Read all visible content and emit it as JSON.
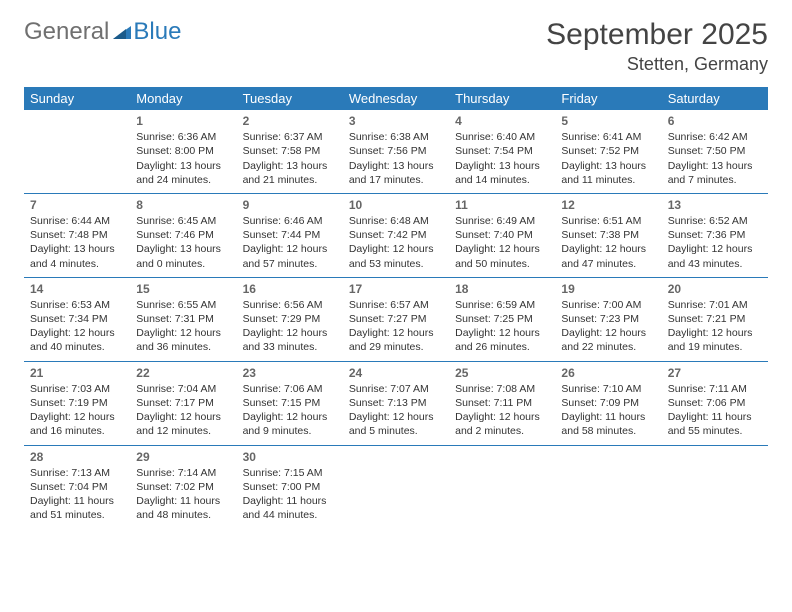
{
  "logo": {
    "general": "General",
    "blue": "Blue"
  },
  "title": "September 2025",
  "location": "Stetten, Germany",
  "header_color": "#2a7ab9",
  "border_color": "#2a7ab9",
  "days_of_week": [
    "Sunday",
    "Monday",
    "Tuesday",
    "Wednesday",
    "Thursday",
    "Friday",
    "Saturday"
  ],
  "weeks": [
    [
      null,
      {
        "n": "1",
        "sr": "Sunrise: 6:36 AM",
        "ss": "Sunset: 8:00 PM",
        "d1": "Daylight: 13 hours",
        "d2": "and 24 minutes."
      },
      {
        "n": "2",
        "sr": "Sunrise: 6:37 AM",
        "ss": "Sunset: 7:58 PM",
        "d1": "Daylight: 13 hours",
        "d2": "and 21 minutes."
      },
      {
        "n": "3",
        "sr": "Sunrise: 6:38 AM",
        "ss": "Sunset: 7:56 PM",
        "d1": "Daylight: 13 hours",
        "d2": "and 17 minutes."
      },
      {
        "n": "4",
        "sr": "Sunrise: 6:40 AM",
        "ss": "Sunset: 7:54 PM",
        "d1": "Daylight: 13 hours",
        "d2": "and 14 minutes."
      },
      {
        "n": "5",
        "sr": "Sunrise: 6:41 AM",
        "ss": "Sunset: 7:52 PM",
        "d1": "Daylight: 13 hours",
        "d2": "and 11 minutes."
      },
      {
        "n": "6",
        "sr": "Sunrise: 6:42 AM",
        "ss": "Sunset: 7:50 PM",
        "d1": "Daylight: 13 hours",
        "d2": "and 7 minutes."
      }
    ],
    [
      {
        "n": "7",
        "sr": "Sunrise: 6:44 AM",
        "ss": "Sunset: 7:48 PM",
        "d1": "Daylight: 13 hours",
        "d2": "and 4 minutes."
      },
      {
        "n": "8",
        "sr": "Sunrise: 6:45 AM",
        "ss": "Sunset: 7:46 PM",
        "d1": "Daylight: 13 hours",
        "d2": "and 0 minutes."
      },
      {
        "n": "9",
        "sr": "Sunrise: 6:46 AM",
        "ss": "Sunset: 7:44 PM",
        "d1": "Daylight: 12 hours",
        "d2": "and 57 minutes."
      },
      {
        "n": "10",
        "sr": "Sunrise: 6:48 AM",
        "ss": "Sunset: 7:42 PM",
        "d1": "Daylight: 12 hours",
        "d2": "and 53 minutes."
      },
      {
        "n": "11",
        "sr": "Sunrise: 6:49 AM",
        "ss": "Sunset: 7:40 PM",
        "d1": "Daylight: 12 hours",
        "d2": "and 50 minutes."
      },
      {
        "n": "12",
        "sr": "Sunrise: 6:51 AM",
        "ss": "Sunset: 7:38 PM",
        "d1": "Daylight: 12 hours",
        "d2": "and 47 minutes."
      },
      {
        "n": "13",
        "sr": "Sunrise: 6:52 AM",
        "ss": "Sunset: 7:36 PM",
        "d1": "Daylight: 12 hours",
        "d2": "and 43 minutes."
      }
    ],
    [
      {
        "n": "14",
        "sr": "Sunrise: 6:53 AM",
        "ss": "Sunset: 7:34 PM",
        "d1": "Daylight: 12 hours",
        "d2": "and 40 minutes."
      },
      {
        "n": "15",
        "sr": "Sunrise: 6:55 AM",
        "ss": "Sunset: 7:31 PM",
        "d1": "Daylight: 12 hours",
        "d2": "and 36 minutes."
      },
      {
        "n": "16",
        "sr": "Sunrise: 6:56 AM",
        "ss": "Sunset: 7:29 PM",
        "d1": "Daylight: 12 hours",
        "d2": "and 33 minutes."
      },
      {
        "n": "17",
        "sr": "Sunrise: 6:57 AM",
        "ss": "Sunset: 7:27 PM",
        "d1": "Daylight: 12 hours",
        "d2": "and 29 minutes."
      },
      {
        "n": "18",
        "sr": "Sunrise: 6:59 AM",
        "ss": "Sunset: 7:25 PM",
        "d1": "Daylight: 12 hours",
        "d2": "and 26 minutes."
      },
      {
        "n": "19",
        "sr": "Sunrise: 7:00 AM",
        "ss": "Sunset: 7:23 PM",
        "d1": "Daylight: 12 hours",
        "d2": "and 22 minutes."
      },
      {
        "n": "20",
        "sr": "Sunrise: 7:01 AM",
        "ss": "Sunset: 7:21 PM",
        "d1": "Daylight: 12 hours",
        "d2": "and 19 minutes."
      }
    ],
    [
      {
        "n": "21",
        "sr": "Sunrise: 7:03 AM",
        "ss": "Sunset: 7:19 PM",
        "d1": "Daylight: 12 hours",
        "d2": "and 16 minutes."
      },
      {
        "n": "22",
        "sr": "Sunrise: 7:04 AM",
        "ss": "Sunset: 7:17 PM",
        "d1": "Daylight: 12 hours",
        "d2": "and 12 minutes."
      },
      {
        "n": "23",
        "sr": "Sunrise: 7:06 AM",
        "ss": "Sunset: 7:15 PM",
        "d1": "Daylight: 12 hours",
        "d2": "and 9 minutes."
      },
      {
        "n": "24",
        "sr": "Sunrise: 7:07 AM",
        "ss": "Sunset: 7:13 PM",
        "d1": "Daylight: 12 hours",
        "d2": "and 5 minutes."
      },
      {
        "n": "25",
        "sr": "Sunrise: 7:08 AM",
        "ss": "Sunset: 7:11 PM",
        "d1": "Daylight: 12 hours",
        "d2": "and 2 minutes."
      },
      {
        "n": "26",
        "sr": "Sunrise: 7:10 AM",
        "ss": "Sunset: 7:09 PM",
        "d1": "Daylight: 11 hours",
        "d2": "and 58 minutes."
      },
      {
        "n": "27",
        "sr": "Sunrise: 7:11 AM",
        "ss": "Sunset: 7:06 PM",
        "d1": "Daylight: 11 hours",
        "d2": "and 55 minutes."
      }
    ],
    [
      {
        "n": "28",
        "sr": "Sunrise: 7:13 AM",
        "ss": "Sunset: 7:04 PM",
        "d1": "Daylight: 11 hours",
        "d2": "and 51 minutes."
      },
      {
        "n": "29",
        "sr": "Sunrise: 7:14 AM",
        "ss": "Sunset: 7:02 PM",
        "d1": "Daylight: 11 hours",
        "d2": "and 48 minutes."
      },
      {
        "n": "30",
        "sr": "Sunrise: 7:15 AM",
        "ss": "Sunset: 7:00 PM",
        "d1": "Daylight: 11 hours",
        "d2": "and 44 minutes."
      },
      null,
      null,
      null,
      null
    ]
  ]
}
